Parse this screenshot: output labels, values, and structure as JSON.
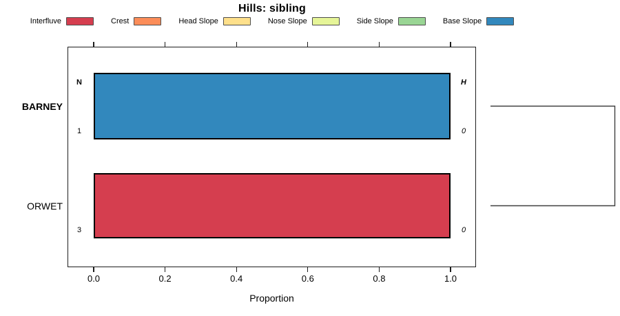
{
  "title": "Hills: sibling",
  "legend": {
    "items": [
      {
        "label": "Interfluve",
        "color": "#D53E4F"
      },
      {
        "label": "Crest",
        "color": "#FC8D59"
      },
      {
        "label": "Head Slope",
        "color": "#FEE08B"
      },
      {
        "label": "Nose Slope",
        "color": "#E6F598"
      },
      {
        "label": "Side Slope",
        "color": "#99D594"
      },
      {
        "label": "Base Slope",
        "color": "#3288BD"
      }
    ]
  },
  "chart_data": {
    "type": "bar",
    "orientation": "horizontal",
    "title": "Hills: sibling",
    "xlabel": "Proportion",
    "xlim": [
      0.0,
      1.0
    ],
    "x_ticks": [
      0.0,
      0.2,
      0.4,
      0.6,
      0.8,
      1.0
    ],
    "x_tick_labels": [
      "0.0",
      "0.2",
      "0.4",
      "0.6",
      "0.8",
      "1.0"
    ],
    "categories": [
      "BARNEY",
      "ORWET"
    ],
    "column_headers": {
      "left": "N",
      "right": "H"
    },
    "rows": [
      {
        "label": "BARNEY",
        "bold": true,
        "segments": [
          {
            "name": "Base Slope",
            "proportion": 1.0,
            "color": "#3288BD"
          }
        ],
        "n": "1",
        "entropy": "0"
      },
      {
        "label": "ORWET",
        "bold": false,
        "segments": [
          {
            "name": "Interfluve",
            "proportion": 1.0,
            "color": "#D53E4F"
          }
        ],
        "n": "3",
        "entropy": "0"
      }
    ],
    "dendrogram": {
      "joined_leaves": [
        "BARNEY",
        "ORWET"
      ]
    },
    "grid": false,
    "legend_position": "top"
  }
}
